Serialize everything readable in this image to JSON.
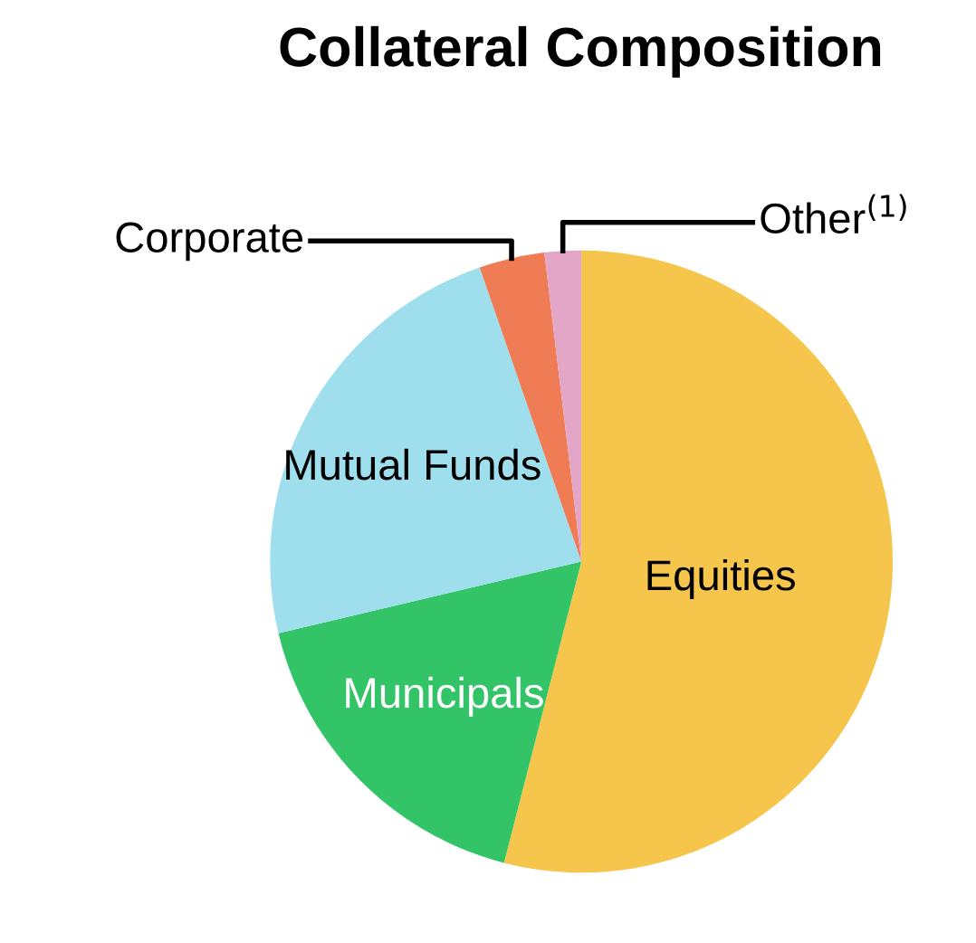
{
  "chart_data": {
    "type": "pie",
    "title": "Collateral Composition",
    "categories": [
      "Equities",
      "Municipals",
      "Mutual Funds",
      "Corporate",
      "Other$^{(1)}$"
    ],
    "values": [
      54,
      17.3,
      23.4,
      3.4,
      1.9
    ],
    "colors": [
      "#f5c54c",
      "#34c468",
      "#9edeed",
      "#f07c56",
      "#e3a6c6"
    ]
  }
}
